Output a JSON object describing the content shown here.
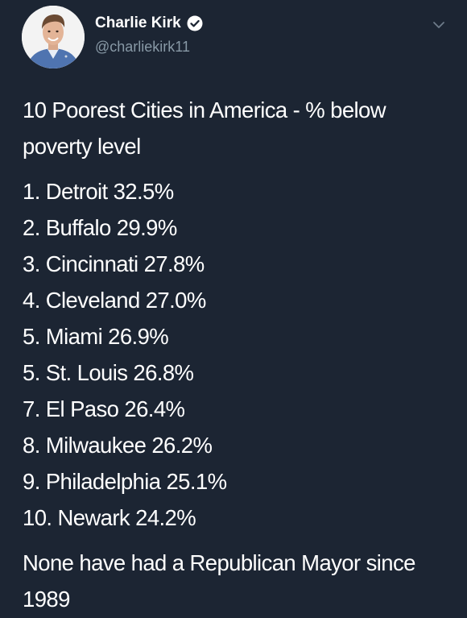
{
  "author": {
    "display_name": "Charlie Kirk",
    "handle": "@charliekirk11",
    "verified": true,
    "avatar_icon": "profile-photo",
    "verified_icon": "verified-badge-icon"
  },
  "tweet": {
    "headline": "10 Poorest Cities in America - % below poverty level",
    "ranking": [
      "1. Detroit 32.5%",
      "2. Buffalo 29.9%",
      "3. Cincinnati 27.8%",
      "4. Cleveland 27.0%",
      "5. Miami 26.9%",
      "5. St. Louis 26.8%",
      "7. El Paso 26.4%",
      "8. Milwaukee 26.2%",
      "9. Philadelphia 25.1%",
      "10. Newark 24.2%"
    ],
    "footer": "None have had a Republican Mayor since 1989"
  },
  "icons": {
    "menu": "chevron-down-icon"
  },
  "colors": {
    "background": "#1c2533",
    "text": "#ffffff",
    "secondary_text": "#8899a6",
    "verified_badge": "#ffffff"
  }
}
